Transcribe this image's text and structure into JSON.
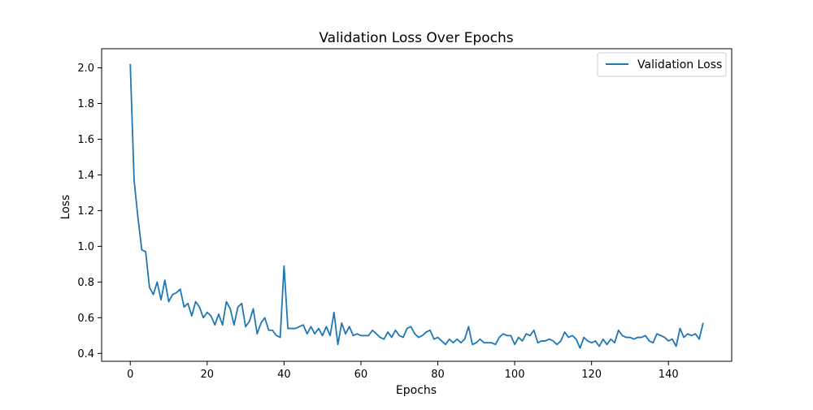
{
  "chart_data": {
    "type": "line",
    "title": "Validation Loss Over Epochs",
    "xlabel": "Epochs",
    "ylabel": "Loss",
    "xlim": [
      -7.45,
      156.45
    ],
    "ylim": [
      0.356,
      2.107
    ],
    "xticks": [
      0,
      20,
      40,
      60,
      80,
      100,
      120,
      140
    ],
    "yticks": [
      0.4,
      0.6,
      0.8,
      1.0,
      1.2,
      1.4,
      1.6,
      1.8,
      2.0
    ],
    "xtick_labels": [
      "0",
      "20",
      "40",
      "60",
      "80",
      "100",
      "120",
      "140"
    ],
    "ytick_labels": [
      "0.4",
      "0.6",
      "0.8",
      "1.0",
      "1.2",
      "1.4",
      "1.6",
      "1.8",
      "2.0"
    ],
    "grid": false,
    "legend_position": "upper right",
    "series": [
      {
        "name": "Validation Loss",
        "color": "#1f77b4",
        "x_start": 0,
        "x_step": 1,
        "values": [
          2.02,
          1.37,
          1.16,
          0.98,
          0.97,
          0.77,
          0.73,
          0.8,
          0.7,
          0.81,
          0.69,
          0.73,
          0.74,
          0.76,
          0.66,
          0.68,
          0.61,
          0.69,
          0.66,
          0.6,
          0.63,
          0.61,
          0.56,
          0.62,
          0.56,
          0.69,
          0.65,
          0.56,
          0.66,
          0.68,
          0.55,
          0.58,
          0.65,
          0.51,
          0.57,
          0.6,
          0.53,
          0.53,
          0.5,
          0.49,
          0.89,
          0.54,
          0.54,
          0.54,
          0.55,
          0.56,
          0.51,
          0.55,
          0.51,
          0.54,
          0.5,
          0.55,
          0.5,
          0.63,
          0.45,
          0.57,
          0.51,
          0.55,
          0.5,
          0.51,
          0.5,
          0.5,
          0.5,
          0.53,
          0.51,
          0.49,
          0.48,
          0.52,
          0.49,
          0.53,
          0.5,
          0.49,
          0.54,
          0.55,
          0.51,
          0.49,
          0.5,
          0.52,
          0.53,
          0.48,
          0.49,
          0.47,
          0.45,
          0.48,
          0.46,
          0.48,
          0.46,
          0.48,
          0.55,
          0.45,
          0.46,
          0.48,
          0.46,
          0.46,
          0.46,
          0.45,
          0.49,
          0.51,
          0.5,
          0.5,
          0.45,
          0.49,
          0.47,
          0.51,
          0.5,
          0.53,
          0.46,
          0.47,
          0.47,
          0.48,
          0.47,
          0.45,
          0.47,
          0.52,
          0.49,
          0.5,
          0.48,
          0.43,
          0.49,
          0.47,
          0.46,
          0.47,
          0.44,
          0.48,
          0.45,
          0.48,
          0.46,
          0.53,
          0.5,
          0.49,
          0.49,
          0.48,
          0.49,
          0.49,
          0.5,
          0.47,
          0.46,
          0.51,
          0.5,
          0.49,
          0.47,
          0.48,
          0.44,
          0.54,
          0.49,
          0.51,
          0.5,
          0.51,
          0.48,
          0.57
        ]
      }
    ]
  }
}
